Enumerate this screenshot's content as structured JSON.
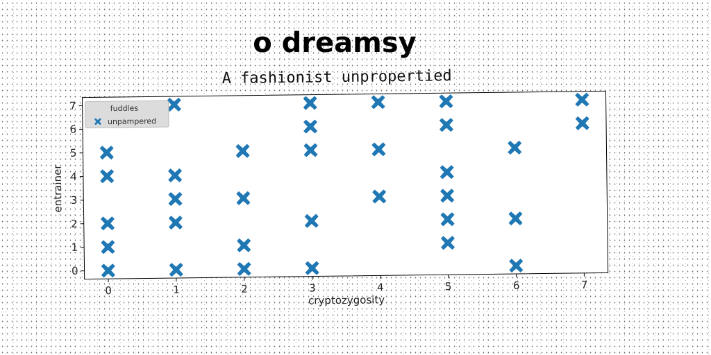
{
  "chart_data": {
    "type": "scatter",
    "suptitle": "o dreamsy",
    "title": "A fashionist unpropertied",
    "xlabel": "cryptozygosity",
    "ylabel": "entrainer",
    "xlim": [
      -0.35,
      7.35
    ],
    "ylim": [
      -0.35,
      7.35
    ],
    "xticks": [
      0,
      1,
      2,
      3,
      4,
      5,
      6,
      7
    ],
    "yticks": [
      0,
      1,
      2,
      3,
      4,
      5,
      6,
      7
    ],
    "grid": false,
    "legend": {
      "placement": "top-left",
      "title": "fuddles",
      "entries": [
        "unpampered"
      ]
    },
    "series": [
      {
        "name": "unpampered",
        "color": "#1f77b4",
        "marker": "X",
        "points": [
          [
            0,
            0
          ],
          [
            0,
            1
          ],
          [
            0,
            2
          ],
          [
            0,
            4
          ],
          [
            0,
            5
          ],
          [
            1,
            0
          ],
          [
            1,
            2
          ],
          [
            1,
            3
          ],
          [
            1,
            4
          ],
          [
            1,
            7
          ],
          [
            2,
            0
          ],
          [
            2,
            1
          ],
          [
            2,
            3
          ],
          [
            2,
            5
          ],
          [
            3,
            0
          ],
          [
            3,
            2
          ],
          [
            3,
            5
          ],
          [
            3,
            6
          ],
          [
            3,
            7
          ],
          [
            4,
            3
          ],
          [
            4,
            5
          ],
          [
            4,
            7
          ],
          [
            5,
            1
          ],
          [
            5,
            2
          ],
          [
            5,
            3
          ],
          [
            5,
            4
          ],
          [
            5,
            6
          ],
          [
            5,
            7
          ],
          [
            6,
            0
          ],
          [
            6,
            2
          ],
          [
            6,
            5
          ],
          [
            7,
            6
          ],
          [
            7,
            7
          ]
        ]
      }
    ]
  }
}
